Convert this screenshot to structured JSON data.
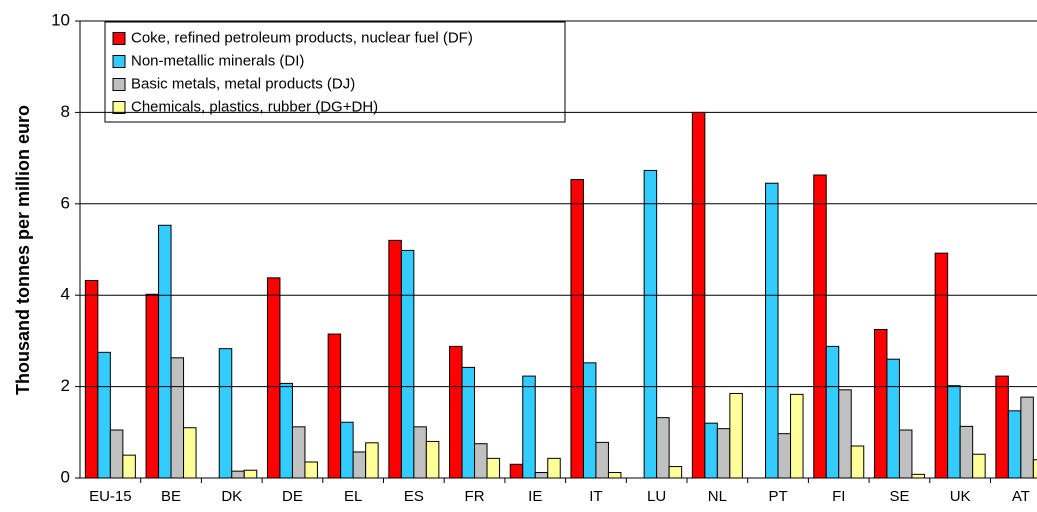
{
  "chart_data": {
    "type": "bar",
    "ylabel": "Thousand tonnes per million euro",
    "categories": [
      "EU-15",
      "BE",
      "DK",
      "DE",
      "EL",
      "ES",
      "FR",
      "IE",
      "IT",
      "LU",
      "NL",
      "PT",
      "FI",
      "SE",
      "UK",
      "AT"
    ],
    "series": [
      {
        "name": "Coke, refined petroleum products, nuclear fuel (DF)",
        "color": "#ff0000",
        "values": [
          4.32,
          4.02,
          0,
          4.38,
          3.15,
          5.2,
          2.88,
          0.3,
          6.53,
          0,
          8.0,
          0,
          6.63,
          3.25,
          4.92,
          2.23
        ]
      },
      {
        "name": "Non-metallic minerals (DI)",
        "color": "#33ccff",
        "values": [
          2.75,
          5.53,
          2.83,
          2.07,
          1.22,
          4.98,
          2.42,
          2.23,
          2.52,
          6.73,
          1.2,
          6.45,
          2.88,
          2.6,
          2.02,
          1.47
        ]
      },
      {
        "name": "Basic metals, metal products (DJ)",
        "color": "#c0c0c0",
        "values": [
          1.05,
          2.63,
          0.15,
          1.12,
          0.57,
          1.12,
          0.75,
          0.12,
          0.78,
          1.32,
          1.08,
          0.97,
          1.93,
          1.05,
          1.13,
          1.77
        ]
      },
      {
        "name": "Chemicals, plastics, rubber (DG+DH)",
        "color": "#ffff99",
        "values": [
          0.5,
          1.1,
          0.17,
          0.35,
          0.77,
          0.8,
          0.43,
          0.43,
          0.12,
          0.25,
          1.85,
          1.83,
          0.7,
          0.08,
          0.52,
          0.4
        ]
      }
    ],
    "ylim": [
      0,
      10
    ],
    "yticks": [
      0,
      2,
      4,
      6,
      8,
      10
    ],
    "grid": true,
    "legend": "upper left"
  }
}
